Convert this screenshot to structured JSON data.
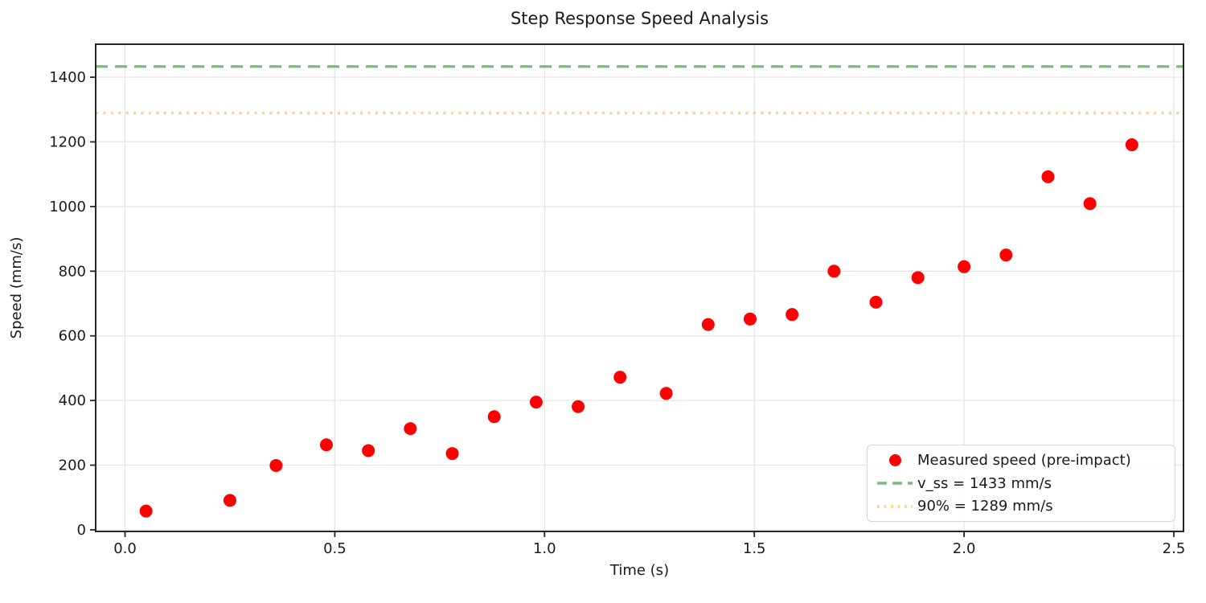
{
  "chart_data": {
    "type": "scatter",
    "title": "Step Response Speed Analysis",
    "xlabel": "Time (s)",
    "ylabel": "Speed (mm/s)",
    "xlim": [
      -0.07,
      2.523
    ],
    "ylim": [
      -5,
      1502
    ],
    "grid": true,
    "xticks": {
      "values": [
        0.0,
        0.5,
        1.0,
        1.5,
        2.0,
        2.5
      ],
      "labels": [
        "0.0",
        "0.5",
        "1.0",
        "1.5",
        "2.0",
        "2.5"
      ]
    },
    "yticks": {
      "values": [
        0,
        200,
        400,
        600,
        800,
        1000,
        1200,
        1400
      ],
      "labels": [
        "0",
        "200",
        "400",
        "600",
        "800",
        "1000",
        "1200",
        "1400"
      ]
    },
    "series": [
      {
        "name": "Measured speed (pre-impact)",
        "type": "scatter",
        "color": "#ff0000",
        "marker": "circle",
        "marker_radius": 8,
        "x": [
          0.05,
          0.25,
          0.36,
          0.48,
          0.58,
          0.68,
          0.78,
          0.88,
          0.98,
          1.08,
          1.18,
          1.29,
          1.39,
          1.49,
          1.59,
          1.69,
          1.79,
          1.89,
          2.0,
          2.1,
          2.2,
          2.3,
          2.4
        ],
        "y": [
          58,
          91,
          199,
          263,
          245,
          313,
          236,
          350,
          395,
          381,
          472,
          422,
          635,
          652,
          666,
          800,
          704,
          780,
          814,
          850,
          1092,
          1009,
          1191
        ]
      }
    ],
    "hlines": [
      {
        "label": "v_ss = 1433 mm/s",
        "value": 1433,
        "color": "#7abb7a",
        "style": "dashed"
      },
      {
        "label": "90% = 1289 mm/s",
        "value": 1289,
        "color": "#ffd183",
        "style": "dotted"
      }
    ],
    "legend": {
      "position": "lower right",
      "entries": [
        {
          "label": "Measured speed (pre-impact)",
          "swatch": "red-dot"
        },
        {
          "label": "v_ss = 1433 mm/s",
          "swatch": "green-dashed-line"
        },
        {
          "label": "90% = 1289 mm/s",
          "swatch": "orange-dotted-line"
        }
      ]
    },
    "colors": {
      "marker": "#ff0000",
      "vss_line": "#7abb7a",
      "pct90_line": "#ffd183",
      "grid": "#e5e5e5",
      "spine": "#262626",
      "text": "#1a1a1a",
      "legend_border": "#d4d4d4"
    }
  }
}
